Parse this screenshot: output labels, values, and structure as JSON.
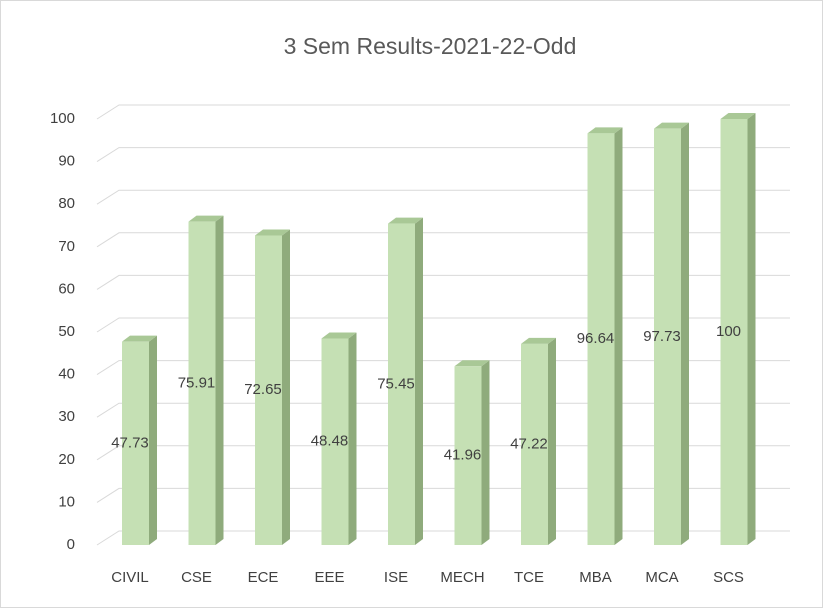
{
  "chart_data": {
    "type": "bar",
    "title": "3 Sem Results-2021-22-Odd",
    "categories": [
      "CIVIL",
      "CSE",
      "ECE",
      "EEE",
      "ISE",
      "MECH",
      "TCE",
      "MBA",
      "MCA",
      "SCS"
    ],
    "values": [
      47.73,
      75.91,
      72.65,
      48.48,
      75.45,
      41.96,
      47.22,
      96.64,
      97.73,
      100
    ],
    "color": "#c5e0b4",
    "ylim": [
      0,
      100
    ],
    "yticks": [
      0,
      10,
      20,
      30,
      40,
      50,
      60,
      70,
      80,
      90,
      100
    ],
    "grid": true
  }
}
